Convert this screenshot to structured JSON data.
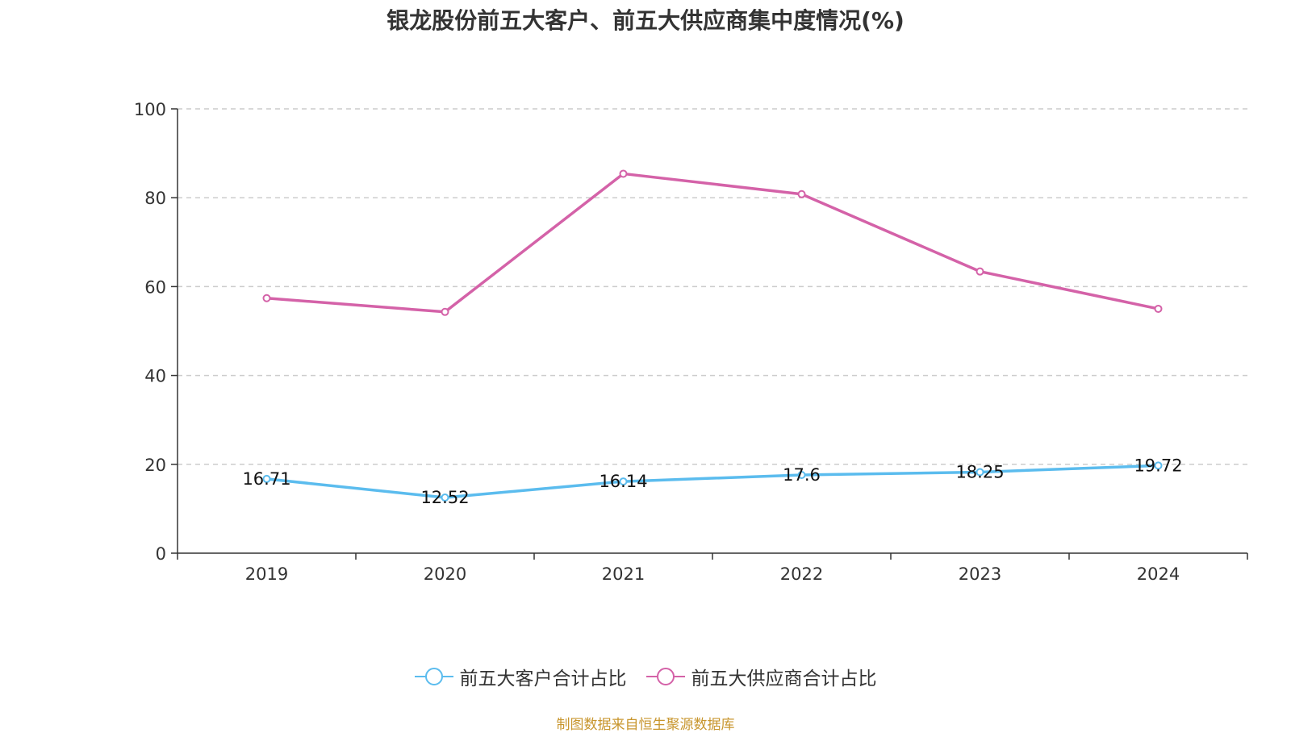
{
  "chart_data": {
    "type": "line",
    "title": "银龙股份前五大客户、前五大供应商集中度情况(%)",
    "categories": [
      "2019",
      "2020",
      "2021",
      "2022",
      "2023",
      "2024"
    ],
    "ylim": [
      0,
      100
    ],
    "yticks": [
      0,
      20,
      40,
      60,
      80,
      100
    ],
    "grid": true,
    "legend_position": "bottom",
    "series": [
      {
        "name": "前五大客户合计占比",
        "color": "#5bbcee",
        "values": [
          16.71,
          12.52,
          16.14,
          17.6,
          18.25,
          19.72
        ],
        "labels": [
          "16.71",
          "12.52",
          "16.14",
          "17.6",
          "18.25",
          "19.72"
        ]
      },
      {
        "name": "前五大供应商合计占比",
        "color": "#d462a8",
        "values": [
          57.4,
          54.3,
          85.4,
          80.8,
          63.4,
          55.0
        ]
      }
    ]
  },
  "source_note": "制图数据来自恒生聚源数据库"
}
